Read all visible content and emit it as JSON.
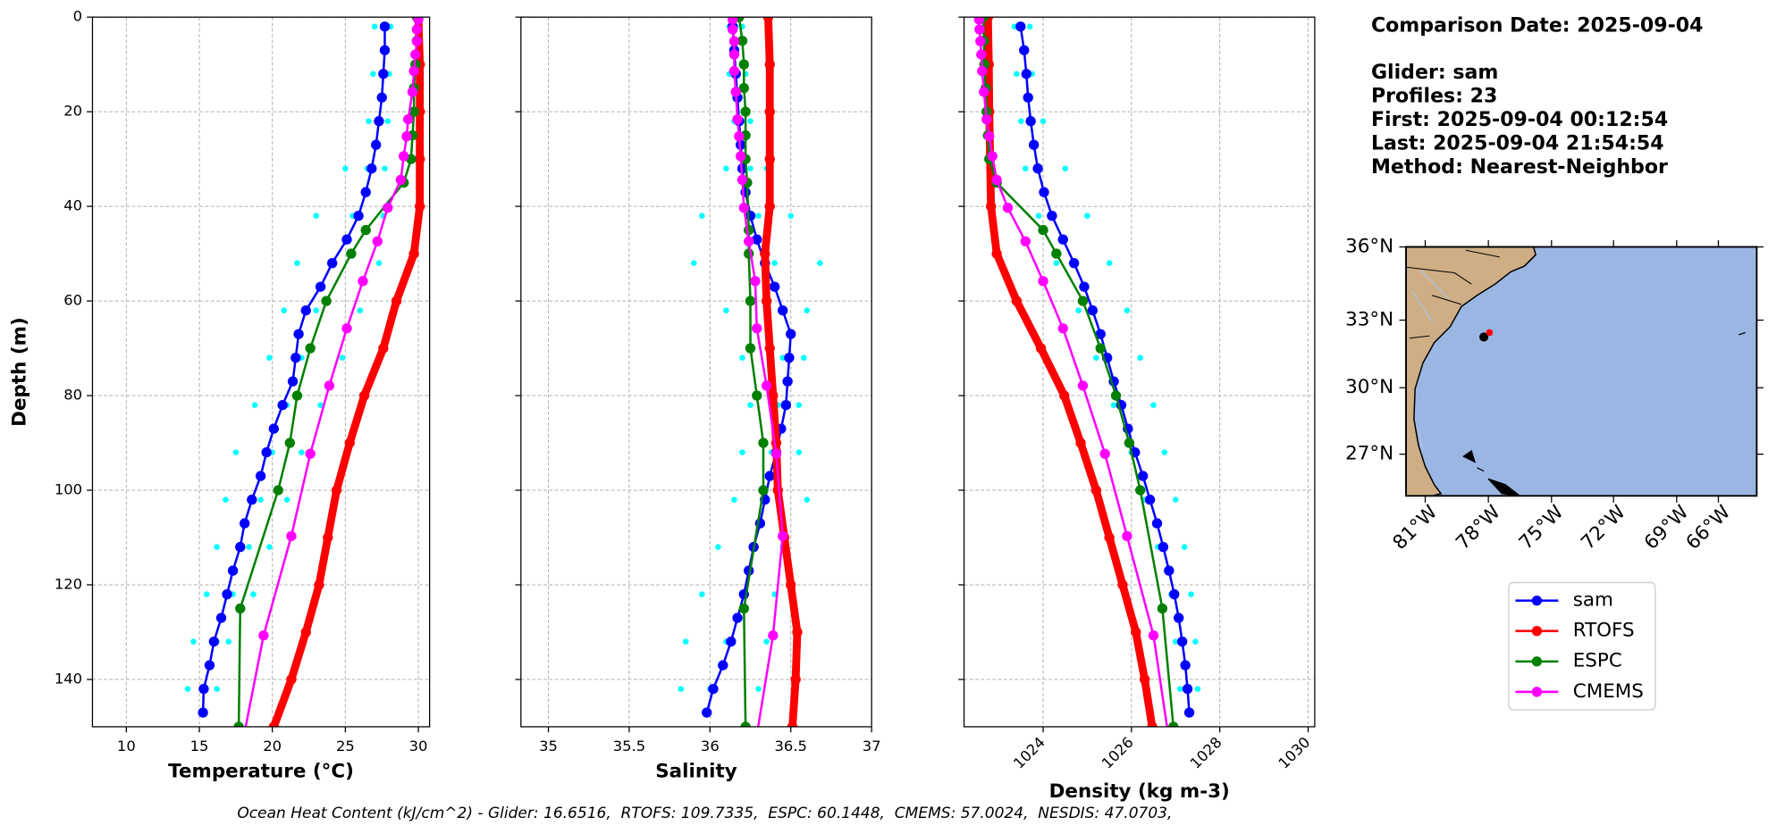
{
  "chart_data": [
    {
      "type": "line",
      "xlabel": "Temperature (°C)",
      "ylabel": "Depth (m)",
      "xlim": [
        7.68,
        30.77
      ],
      "xticks": [
        10,
        15,
        20,
        25,
        30
      ],
      "ylim": [
        0,
        150
      ],
      "invert_y": true,
      "yticks": [
        0,
        20,
        40,
        60,
        80,
        100,
        120,
        140
      ],
      "show_ytick_labels": true,
      "grid": true,
      "profiles": {
        "color": "#00ffff",
        "y": [
          2,
          12,
          22,
          32,
          42,
          52,
          62,
          72,
          82,
          92,
          102,
          112,
          122,
          132,
          142
        ],
        "values": [
          [
            27.0,
            26.9,
            26.6,
            25.0,
            23.0,
            21.7,
            20.8,
            19.8,
            18.8,
            17.5,
            16.8,
            16.2,
            15.5,
            14.6,
            14.2
          ],
          [
            27.6,
            27.5,
            27.2,
            26.5,
            25.5,
            24.0,
            23.0,
            22.0,
            21.0,
            20.0,
            19.2,
            18.4,
            17.3,
            16.2,
            15.3
          ],
          [
            28.1,
            28.0,
            27.9,
            27.7,
            27.6,
            27.3,
            26.0,
            24.8,
            23.3,
            22.0,
            21.0,
            19.8,
            18.7,
            17.0,
            16.2
          ]
        ]
      },
      "series": [
        {
          "name": "sam",
          "color": "#0000ff",
          "linewidth": 2,
          "y": [
            2,
            7,
            12,
            17,
            22,
            27,
            32,
            37,
            42,
            47,
            52,
            57,
            62,
            67,
            72,
            77,
            82,
            87,
            92,
            97,
            102,
            107,
            112,
            117,
            122,
            127,
            132,
            137,
            142,
            147
          ],
          "values": [
            27.7,
            27.7,
            27.6,
            27.5,
            27.3,
            27.1,
            26.8,
            26.4,
            25.9,
            25.1,
            24.1,
            23.3,
            22.3,
            21.8,
            21.6,
            21.4,
            20.7,
            20.1,
            19.6,
            19.2,
            18.6,
            18.1,
            17.8,
            17.3,
            16.9,
            16.5,
            16.0,
            15.7,
            15.3,
            15.25
          ]
        },
        {
          "name": "RTOFS",
          "color": "#ff0000",
          "linewidth": 7,
          "y": [
            0,
            10,
            20,
            30,
            40,
            50,
            60,
            70,
            80,
            90,
            100,
            110,
            120,
            130,
            140,
            150
          ],
          "values": [
            30.0,
            30.1,
            30.1,
            30.1,
            30.1,
            29.7,
            28.5,
            27.6,
            26.3,
            25.3,
            24.4,
            23.8,
            23.2,
            22.3,
            21.3,
            20.1
          ]
        },
        {
          "name": "ESPC",
          "color": "#008000",
          "linewidth": 2,
          "y": [
            0,
            5,
            10,
            15,
            20,
            25,
            30,
            35,
            45,
            50,
            60,
            70,
            80,
            90,
            100,
            125,
            150
          ],
          "values": [
            29.9,
            29.9,
            29.8,
            29.7,
            29.7,
            29.6,
            29.5,
            29.0,
            26.4,
            25.4,
            23.7,
            22.6,
            21.7,
            21.2,
            20.4,
            17.8,
            17.7
          ]
        },
        {
          "name": "CMEMS",
          "color": "#ff00ff",
          "linewidth": 2,
          "y": [
            0.5,
            2.6,
            5.1,
            7.9,
            11.4,
            15.8,
            21.6,
            25.2,
            29.4,
            34.4,
            40.3,
            47.4,
            55.8,
            65.8,
            77.9,
            92.3,
            109.7,
            130.7,
            155.9
          ],
          "values": [
            30.0,
            29.9,
            29.9,
            29.8,
            29.7,
            29.6,
            29.3,
            29.2,
            29.0,
            28.8,
            27.9,
            27.2,
            26.2,
            25.1,
            23.9,
            22.6,
            21.3,
            19.4,
            17.8
          ]
        }
      ]
    },
    {
      "type": "line",
      "xlabel": "Salinity",
      "xlim": [
        34.83,
        37.0
      ],
      "xticks": [
        35.0,
        35.5,
        36.0,
        36.5,
        37.0
      ],
      "ylim": [
        0,
        150
      ],
      "invert_y": true,
      "yticks": [
        0,
        20,
        40,
        60,
        80,
        100,
        120,
        140
      ],
      "show_ytick_labels": false,
      "grid": true,
      "profiles": {
        "color": "#00ffff",
        "y": [
          2,
          12,
          22,
          32,
          42,
          52,
          62,
          72,
          82,
          92,
          102,
          112,
          122,
          132,
          142
        ],
        "values": [
          [
            36.12,
            36.12,
            36.15,
            36.1,
            35.95,
            35.9,
            36.1,
            36.2,
            36.25,
            36.2,
            36.15,
            36.05,
            35.95,
            35.85,
            35.82
          ],
          [
            36.16,
            36.17,
            36.2,
            36.25,
            36.3,
            36.4,
            36.45,
            36.45,
            36.42,
            36.38,
            36.33,
            36.28,
            36.2,
            36.1,
            36.0
          ],
          [
            36.2,
            36.22,
            36.25,
            36.35,
            36.5,
            36.68,
            36.6,
            36.58,
            36.55,
            36.55,
            36.6,
            36.45,
            36.4,
            36.35,
            36.3
          ]
        ]
      },
      "series": [
        {
          "name": "sam",
          "color": "#0000ff",
          "linewidth": 2,
          "y": [
            2,
            7,
            12,
            17,
            22,
            27,
            32,
            37,
            42,
            47,
            52,
            57,
            62,
            67,
            72,
            77,
            82,
            87,
            92,
            97,
            102,
            107,
            112,
            117,
            122,
            127,
            132,
            137,
            142,
            147
          ],
          "values": [
            36.14,
            36.15,
            36.16,
            36.17,
            36.18,
            36.19,
            36.2,
            36.22,
            36.25,
            36.29,
            36.34,
            36.4,
            36.45,
            36.5,
            36.49,
            36.48,
            36.47,
            36.44,
            36.41,
            36.37,
            36.34,
            36.31,
            36.27,
            36.24,
            36.21,
            36.17,
            36.13,
            36.08,
            36.02,
            35.98
          ]
        },
        {
          "name": "RTOFS",
          "color": "#ff0000",
          "linewidth": 7,
          "y": [
            0,
            10,
            20,
            30,
            40,
            50,
            60,
            70,
            80,
            90,
            100,
            110,
            120,
            130,
            140,
            150
          ],
          "values": [
            36.36,
            36.37,
            36.37,
            36.37,
            36.37,
            36.34,
            36.35,
            36.37,
            36.39,
            36.41,
            36.42,
            36.46,
            36.5,
            36.54,
            36.53,
            36.51
          ]
        },
        {
          "name": "ESPC",
          "color": "#008000",
          "linewidth": 2,
          "y": [
            0,
            5,
            10,
            15,
            20,
            25,
            30,
            35,
            45,
            50,
            60,
            70,
            80,
            90,
            100,
            125,
            150
          ],
          "values": [
            36.18,
            36.2,
            36.21,
            36.21,
            36.22,
            36.22,
            36.22,
            36.23,
            36.24,
            36.24,
            36.25,
            36.25,
            36.29,
            36.33,
            36.33,
            36.21,
            36.22
          ]
        },
        {
          "name": "CMEMS",
          "color": "#ff00ff",
          "linewidth": 2,
          "y": [
            0.5,
            2.6,
            5.1,
            7.9,
            11.4,
            15.8,
            21.6,
            25.2,
            29.4,
            34.4,
            40.3,
            47.4,
            55.8,
            65.8,
            77.9,
            92.3,
            109.7,
            130.7,
            155.9
          ],
          "values": [
            36.14,
            36.14,
            36.15,
            36.15,
            36.15,
            36.16,
            36.17,
            36.18,
            36.19,
            36.2,
            36.21,
            36.24,
            36.28,
            36.29,
            36.35,
            36.41,
            36.45,
            36.39,
            36.27
          ]
        }
      ]
    },
    {
      "type": "line",
      "xlabel": "Density (kg m-3)",
      "xlim": [
        1022.21,
        1030.15
      ],
      "xticks": [
        1024,
        1026,
        1028,
        1030
      ],
      "xtick_rotation": 45,
      "ylim": [
        0,
        150
      ],
      "invert_y": true,
      "yticks": [
        0,
        20,
        40,
        60,
        80,
        100,
        120,
        140
      ],
      "show_ytick_labels": false,
      "grid": true,
      "profiles": {
        "color": "#00ffff",
        "y": [
          2,
          12,
          22,
          32,
          42,
          52,
          62,
          72,
          82,
          92,
          102,
          112,
          122,
          132,
          142
        ],
        "values": [
          [
            1023.35,
            1023.4,
            1023.5,
            1023.6,
            1023.9,
            1024.3,
            1024.8,
            1025.2,
            1025.6,
            1026.0,
            1026.3,
            1026.6,
            1026.9,
            1027.0,
            1027.1
          ],
          [
            1023.5,
            1023.6,
            1023.7,
            1023.9,
            1024.2,
            1024.75,
            1025.1,
            1025.45,
            1025.77,
            1026.08,
            1026.42,
            1026.72,
            1026.97,
            1027.15,
            1027.27
          ],
          [
            1023.7,
            1023.75,
            1024.0,
            1024.5,
            1025.0,
            1025.5,
            1025.9,
            1026.2,
            1026.5,
            1026.75,
            1027.0,
            1027.2,
            1027.35,
            1027.45,
            1027.5
          ]
        ]
      },
      "series": [
        {
          "name": "sam",
          "color": "#0000ff",
          "linewidth": 2,
          "y": [
            2,
            7,
            12,
            17,
            22,
            27,
            32,
            37,
            42,
            47,
            52,
            57,
            62,
            67,
            72,
            77,
            82,
            87,
            92,
            97,
            102,
            107,
            112,
            117,
            122,
            127,
            132,
            137,
            142,
            147
          ],
          "values": [
            1023.49,
            1023.57,
            1023.62,
            1023.66,
            1023.72,
            1023.79,
            1023.88,
            1024.02,
            1024.2,
            1024.45,
            1024.7,
            1024.93,
            1025.12,
            1025.3,
            1025.45,
            1025.6,
            1025.77,
            1025.92,
            1026.08,
            1026.26,
            1026.42,
            1026.58,
            1026.72,
            1026.85,
            1026.97,
            1027.07,
            1027.15,
            1027.22,
            1027.27,
            1027.31
          ]
        },
        {
          "name": "RTOFS",
          "color": "#ff0000",
          "linewidth": 7,
          "y": [
            0,
            10,
            20,
            30,
            40,
            50,
            60,
            70,
            80,
            90,
            100,
            110,
            120,
            130,
            140,
            150
          ],
          "values": [
            1022.75,
            1022.77,
            1022.78,
            1022.8,
            1022.82,
            1022.95,
            1023.4,
            1023.95,
            1024.48,
            1024.85,
            1025.2,
            1025.5,
            1025.8,
            1026.1,
            1026.3,
            1026.47
          ]
        },
        {
          "name": "ESPC",
          "color": "#008000",
          "linewidth": 2,
          "y": [
            0,
            5,
            10,
            15,
            20,
            25,
            30,
            35,
            45,
            50,
            60,
            70,
            80,
            90,
            100,
            125,
            150
          ],
          "values": [
            1022.65,
            1022.66,
            1022.67,
            1022.7,
            1022.72,
            1022.75,
            1022.78,
            1022.95,
            1024.0,
            1024.3,
            1024.9,
            1025.3,
            1025.65,
            1025.95,
            1026.2,
            1026.7,
            1026.95
          ]
        },
        {
          "name": "CMEMS",
          "color": "#ff00ff",
          "linewidth": 2,
          "y": [
            0.5,
            2.6,
            5.1,
            7.9,
            11.4,
            15.8,
            21.6,
            25.2,
            29.4,
            34.4,
            40.3,
            47.4,
            55.8,
            65.8,
            77.9,
            92.3,
            109.7,
            130.7,
            155.9
          ],
          "values": [
            1022.55,
            1022.56,
            1022.58,
            1022.6,
            1022.62,
            1022.66,
            1022.72,
            1022.78,
            1022.85,
            1022.95,
            1023.2,
            1023.6,
            1024.0,
            1024.45,
            1024.9,
            1025.4,
            1025.9,
            1026.5,
            1026.9
          ]
        }
      ]
    }
  ],
  "info": {
    "title": "Comparison Date: 2025-09-04",
    "lines": [
      "Glider: sam",
      "Profiles: 23",
      "First: 2025-09-04 00:12:54",
      "Last: 2025-09-04 21:54:54",
      "Method: Nearest-Neighbor"
    ]
  },
  "map": {
    "lat_labels": [
      "36°N",
      "33°N",
      "30°N",
      "27°N"
    ],
    "lon_labels": [
      "81°W",
      "78°W",
      "75°W",
      "72°W",
      "69°W",
      "66°W"
    ]
  },
  "footer": "Ocean Heat Content (kJ/cm^2) - Glider: 16.6516,  RTOFS: 109.7335,  ESPC: 60.1448,  CMEMS: 57.0024,  NESDIS: 47.0703,"
}
